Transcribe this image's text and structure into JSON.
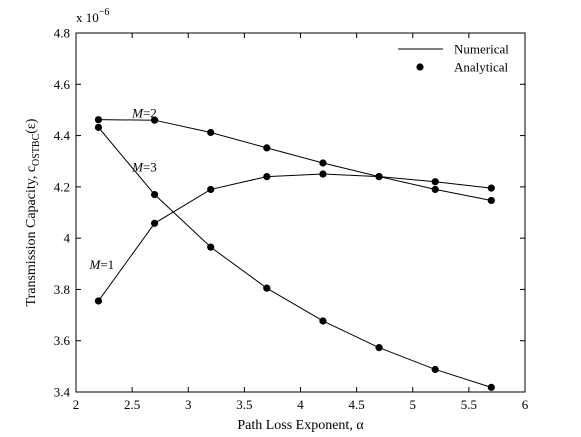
{
  "chart_data": {
    "type": "line",
    "xlabel_main": "Path Loss Exponent, ",
    "xlabel_symbol": "α",
    "ylabel_main": "Transmission Capacity, c",
    "ylabel_sub": "OSTBC",
    "ylabel_arg": "(ε)",
    "y_multiplier_base": "x 10",
    "y_multiplier_exp": "−6",
    "xlim": [
      2,
      6
    ],
    "ylim": [
      3.4,
      4.8
    ],
    "x_ticks": [
      2,
      2.5,
      3,
      3.5,
      4,
      4.5,
      5,
      5.5,
      6
    ],
    "x_tick_labels": [
      "2",
      "2.5",
      "3",
      "3.5",
      "4",
      "4.5",
      "5",
      "5.5",
      "6"
    ],
    "y_ticks": [
      3.4,
      3.6,
      3.8,
      4.0,
      4.2,
      4.4,
      4.6,
      4.8
    ],
    "y_tick_labels": [
      "3.4",
      "3.6",
      "3.8",
      "4",
      "4.2",
      "4.4",
      "4.6",
      "4.8"
    ],
    "grid": false,
    "legend": {
      "placement": "top-right",
      "entries": [
        {
          "label": "Numerical",
          "style": "line"
        },
        {
          "label": "Analytical",
          "style": "marker"
        }
      ]
    },
    "x": [
      2.2,
      2.7,
      3.2,
      3.7,
      4.2,
      4.7,
      5.2,
      5.7
    ],
    "series": [
      {
        "label_var": "M",
        "label_eq": "=1",
        "values": [
          3.755,
          4.058,
          4.19,
          4.24,
          4.25,
          4.24,
          4.22,
          4.195
        ]
      },
      {
        "label_var": "M",
        "label_eq": "=2",
        "values": [
          4.462,
          4.46,
          4.412,
          4.352,
          4.293,
          4.24,
          4.19,
          4.147
        ]
      },
      {
        "label_var": "M",
        "label_eq": "=3",
        "values": [
          4.432,
          4.17,
          3.965,
          3.805,
          3.677,
          3.573,
          3.488,
          3.418
        ]
      }
    ],
    "colors": {
      "line": "#000000",
      "marker": "#000000",
      "axis": "#000000"
    }
  }
}
